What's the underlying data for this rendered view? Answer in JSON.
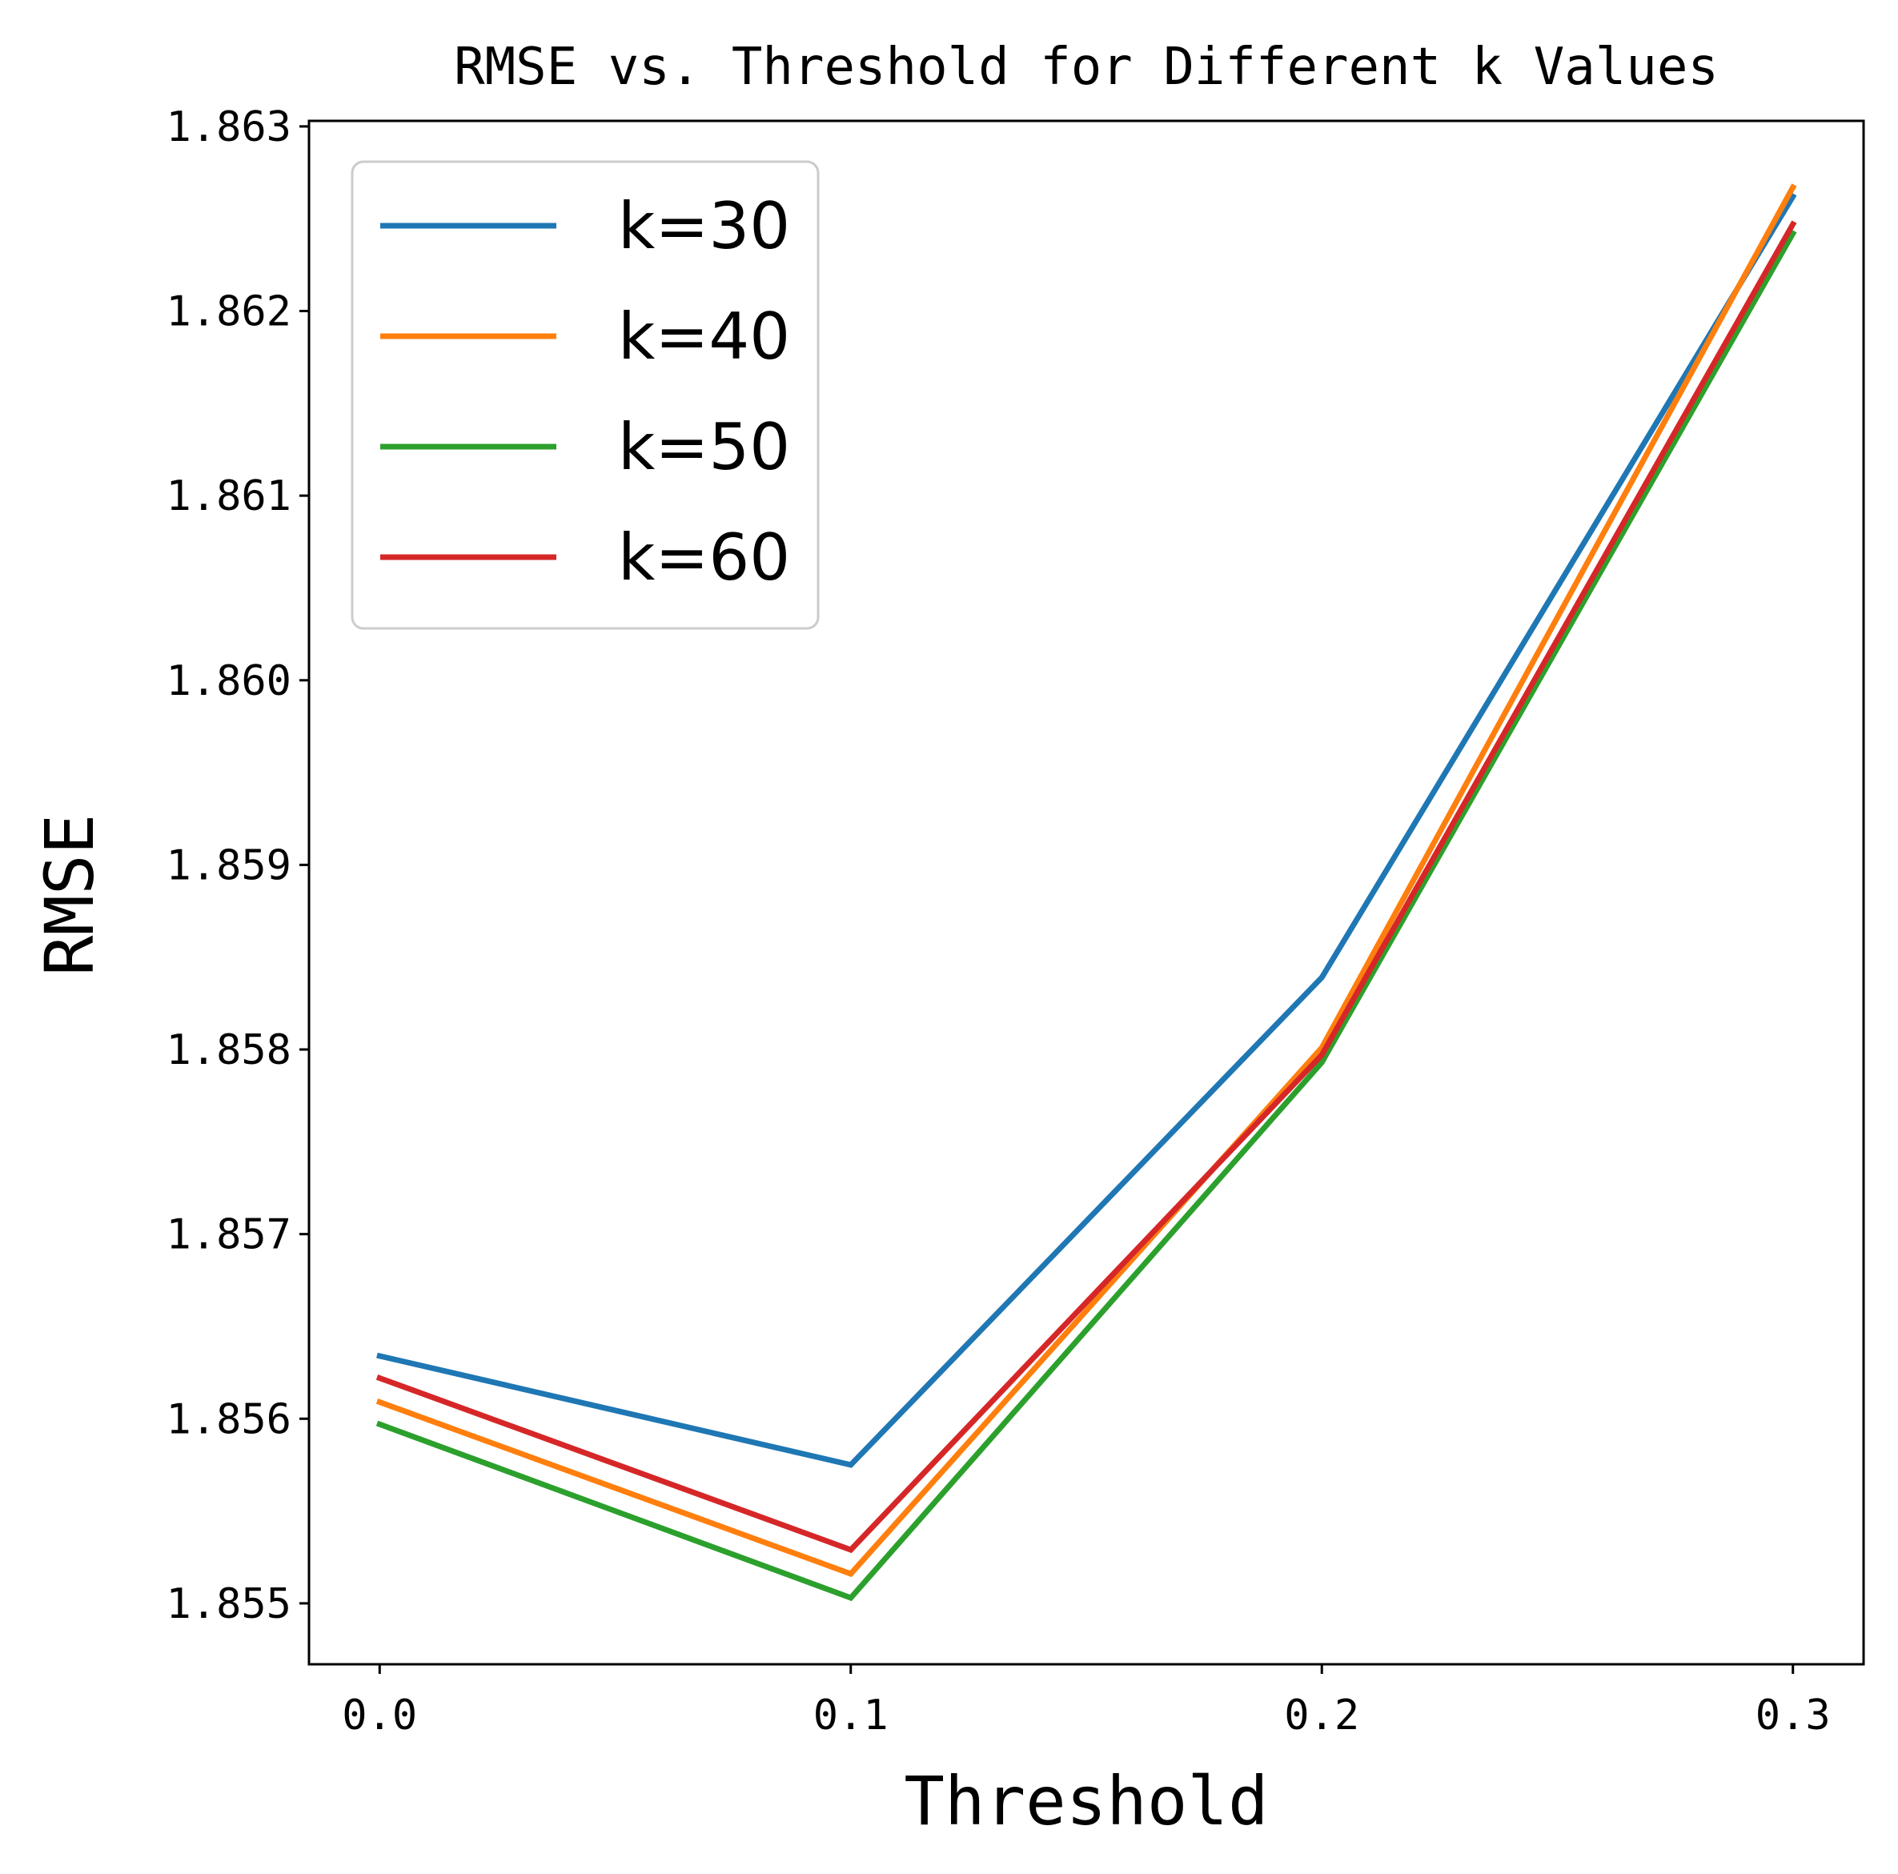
{
  "chart_data": {
    "type": "line",
    "title": "RMSE vs. Threshold for Different k Values",
    "xlabel": "Threshold",
    "ylabel": "RMSE",
    "x": [
      0.0,
      0.1,
      0.2,
      0.3
    ],
    "x_tick_labels": [
      "0.0",
      "0.1",
      "0.2",
      "0.3"
    ],
    "xlim": [
      -0.015,
      0.315
    ],
    "y_ticks": [
      1.855,
      1.856,
      1.857,
      1.858,
      1.859,
      1.86,
      1.861,
      1.862,
      1.863
    ],
    "y_tick_labels": [
      "1.855",
      "1.856",
      "1.857",
      "1.858",
      "1.859",
      "1.860",
      "1.861",
      "1.862",
      "1.863"
    ],
    "ylim": [
      1.85467,
      1.86303
    ],
    "grid": false,
    "legend_position": "top-left",
    "series": [
      {
        "name": "k=30",
        "color": "#1f77b4",
        "values": [
          1.85634,
          1.85575,
          1.85839,
          1.86262
        ]
      },
      {
        "name": "k=40",
        "color": "#ff7f0e",
        "values": [
          1.85609,
          1.85516,
          1.85801,
          1.86267
        ]
      },
      {
        "name": "k=50",
        "color": "#2ca02c",
        "values": [
          1.85597,
          1.85503,
          1.85793,
          1.86242
        ]
      },
      {
        "name": "k=60",
        "color": "#d62728",
        "values": [
          1.85622,
          1.85529,
          1.85797,
          1.86247
        ]
      }
    ]
  }
}
